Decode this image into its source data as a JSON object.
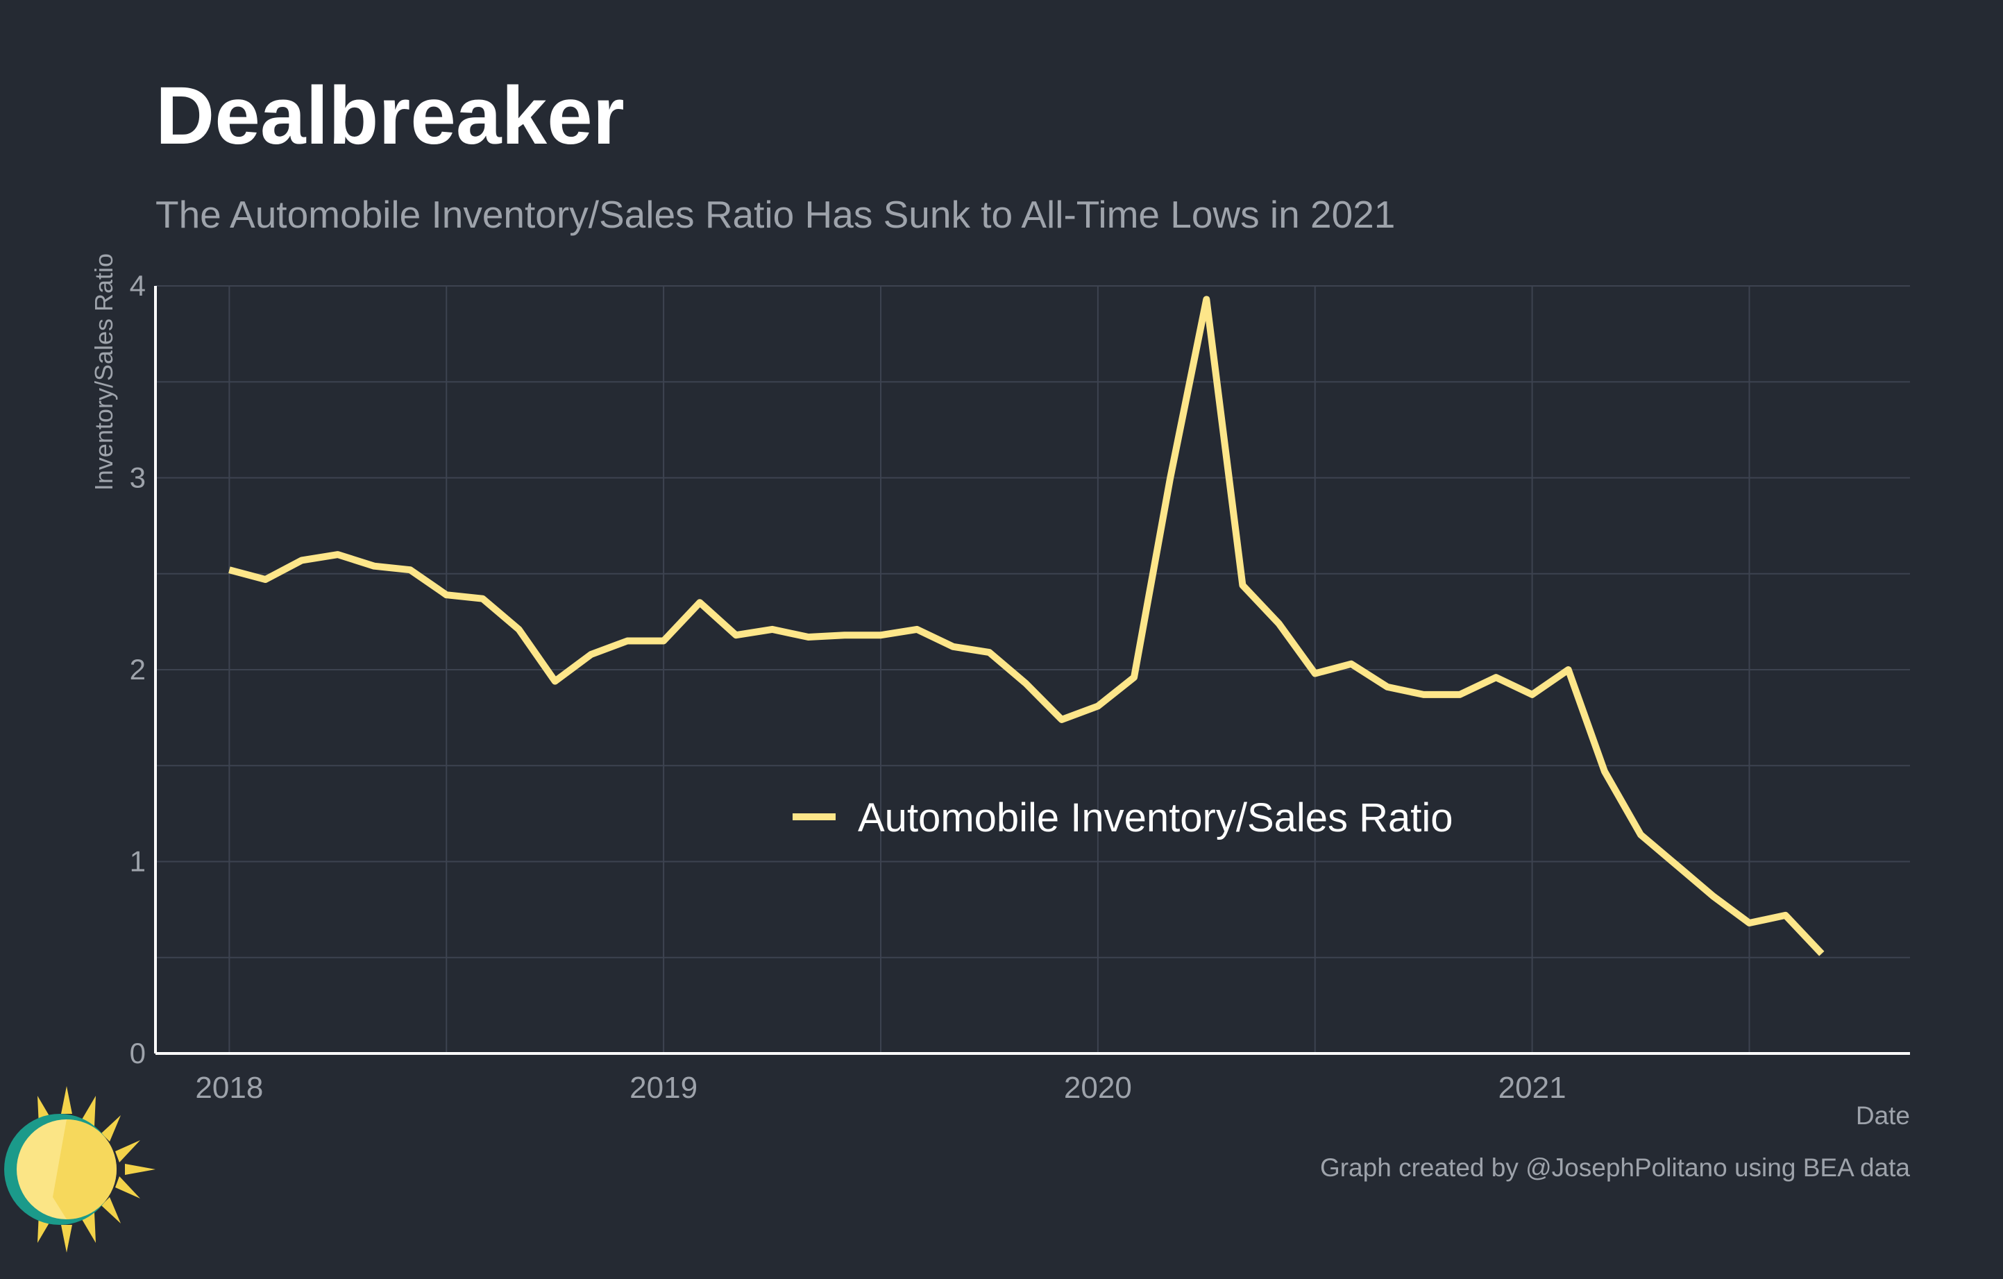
{
  "title": "Dealbreaker",
  "subtitle": "The Automobile Inventory/Sales Ratio Has Sunk to All-Time Lows in 2021",
  "caption": "Graph created by @JosephPolitano using BEA data",
  "colors": {
    "background": "#252a33",
    "line": "#fde68a",
    "grid": "#3d4350",
    "axis": "#ffffff",
    "text_muted": "#9ea3ab"
  },
  "chart_data": {
    "type": "line",
    "xlabel": "Date",
    "ylabel": "Inventory/Sales Ratio",
    "ylim": [
      0,
      4
    ],
    "yticks": [
      0,
      1,
      2,
      3,
      4
    ],
    "xticks": [
      2018,
      2019,
      2020,
      2021
    ],
    "xlim": [
      2017.83,
      2021.87
    ],
    "grid": true,
    "legend_position": "center-right",
    "series": [
      {
        "name": "Automobile Inventory/Sales Ratio",
        "color": "#fde68a",
        "x": [
          "2018-01",
          "2018-02",
          "2018-03",
          "2018-04",
          "2018-05",
          "2018-06",
          "2018-07",
          "2018-08",
          "2018-09",
          "2018-10",
          "2018-11",
          "2018-12",
          "2019-01",
          "2019-02",
          "2019-03",
          "2019-04",
          "2019-05",
          "2019-06",
          "2019-07",
          "2019-08",
          "2019-09",
          "2019-10",
          "2019-11",
          "2019-12",
          "2020-01",
          "2020-02",
          "2020-03",
          "2020-04",
          "2020-05",
          "2020-06",
          "2020-07",
          "2020-08",
          "2020-09",
          "2020-10",
          "2020-11",
          "2020-12",
          "2021-01",
          "2021-02",
          "2021-03",
          "2021-04",
          "2021-05",
          "2021-06",
          "2021-07",
          "2021-08",
          "2021-09"
        ],
        "values": [
          2.52,
          2.47,
          2.57,
          2.6,
          2.54,
          2.52,
          2.39,
          2.37,
          2.21,
          1.94,
          2.08,
          2.15,
          2.15,
          2.35,
          2.18,
          2.21,
          2.17,
          2.18,
          2.18,
          2.21,
          2.12,
          2.09,
          1.93,
          1.74,
          1.81,
          1.96,
          3.0,
          3.93,
          2.44,
          2.24,
          1.98,
          2.03,
          1.91,
          1.87,
          1.87,
          1.96,
          1.87,
          2.0,
          1.47,
          1.14,
          0.98,
          0.82,
          0.68,
          0.72,
          0.52
        ]
      }
    ]
  }
}
